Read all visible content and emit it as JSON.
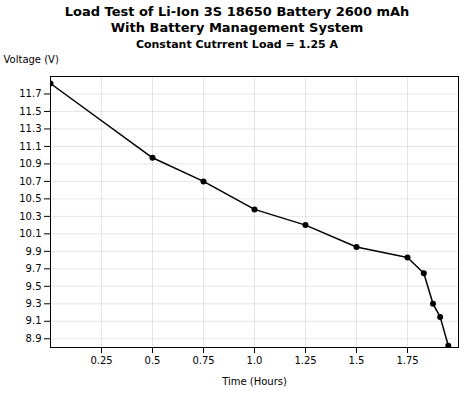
{
  "chart_data": {
    "type": "line",
    "title": "Load Test of Li-Ion 3S 18650 Battery 2600 mAh\nWith Battery Management System",
    "subtitle": "Constant Cutrrent Load = 1.25 A",
    "xlabel": "Time (Hours)",
    "ylabel": "Voltage (V)",
    "x": [
      0.0,
      0.5,
      0.75,
      1.0,
      1.25,
      1.5,
      1.75,
      1.83,
      1.875,
      1.91,
      1.95
    ],
    "values": [
      11.82,
      10.97,
      10.7,
      10.38,
      10.2,
      9.95,
      9.83,
      9.65,
      9.3,
      9.15,
      8.82
    ],
    "xlim": [
      0,
      2.0
    ],
    "ylim": [
      8.8,
      11.9
    ],
    "xticks": [
      0.25,
      0.5,
      0.75,
      {
        "value": 1.0,
        "label": "1.0"
      },
      1.25,
      1.5,
      1.75
    ],
    "yticks": [
      8.9,
      9.1,
      9.3,
      9.5,
      9.7,
      9.9,
      10.1,
      10.3,
      10.5,
      10.7,
      10.9,
      11.1,
      11.3,
      11.5,
      11.7
    ],
    "marker": "circle",
    "grid": true
  }
}
